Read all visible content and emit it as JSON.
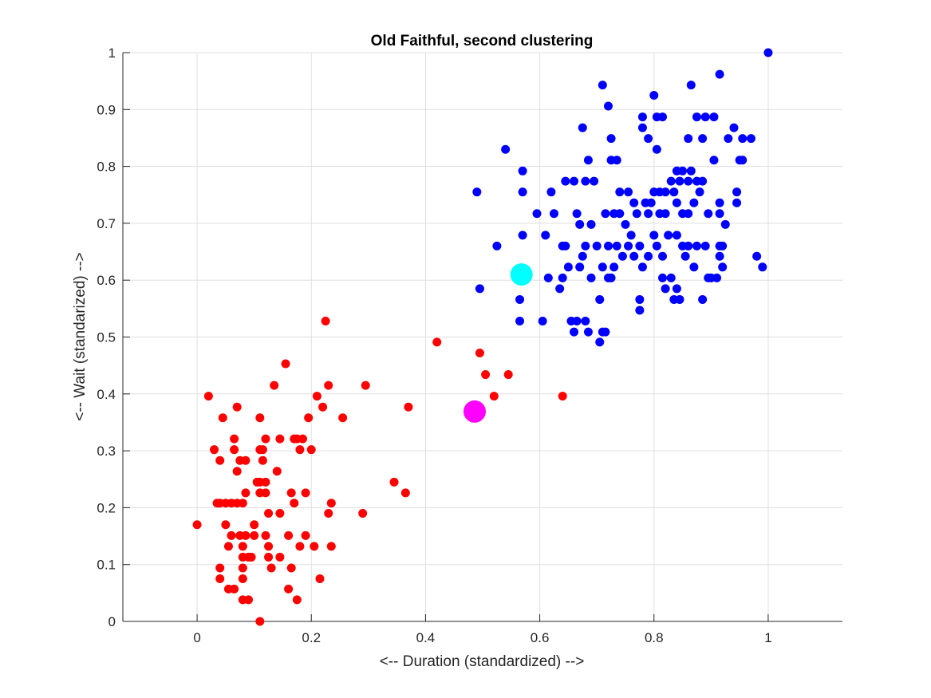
{
  "chart_data": {
    "type": "scatter",
    "title": "Old Faithful, second clustering",
    "xlabel": "<-- Duration (standardized) -->",
    "ylabel": "<-- Wait (standarized) -->",
    "xlim": [
      -0.13,
      1.13
    ],
    "ylim": [
      0,
      1
    ],
    "xticks": [
      0,
      0.2,
      0.4,
      0.6,
      0.8,
      1
    ],
    "yticks": [
      0,
      0.1,
      0.2,
      0.3,
      0.4,
      0.5,
      0.6,
      0.7,
      0.8,
      0.9,
      1
    ],
    "xtick_labels": [
      "0",
      "0.2",
      "0.4",
      "0.6",
      "0.8",
      "1"
    ],
    "ytick_labels": [
      "0",
      "0.1",
      "0.2",
      "0.3",
      "0.4",
      "0.5",
      "0.6",
      "0.7",
      "0.8",
      "0.9",
      "1"
    ],
    "grid": true,
    "series": [
      {
        "color": "#ff0000",
        "points": [
          [
            0.0,
            0.17
          ],
          [
            0.02,
            0.396
          ],
          [
            0.03,
            0.302
          ],
          [
            0.035,
            0.208
          ],
          [
            0.04,
            0.208
          ],
          [
            0.04,
            0.283
          ],
          [
            0.045,
            0.358
          ],
          [
            0.04,
            0.094
          ],
          [
            0.04,
            0.075
          ],
          [
            0.05,
            0.208
          ],
          [
            0.05,
            0.17
          ],
          [
            0.055,
            0.132
          ],
          [
            0.055,
            0.057
          ],
          [
            0.06,
            0.208
          ],
          [
            0.06,
            0.151
          ],
          [
            0.065,
            0.321
          ],
          [
            0.065,
            0.302
          ],
          [
            0.065,
            0.057
          ],
          [
            0.07,
            0.377
          ],
          [
            0.07,
            0.264
          ],
          [
            0.07,
            0.208
          ],
          [
            0.075,
            0.283
          ],
          [
            0.075,
            0.151
          ],
          [
            0.08,
            0.208
          ],
          [
            0.08,
            0.132
          ],
          [
            0.08,
            0.113
          ],
          [
            0.08,
            0.094
          ],
          [
            0.08,
            0.075
          ],
          [
            0.08,
            0.038
          ],
          [
            0.085,
            0.283
          ],
          [
            0.085,
            0.226
          ],
          [
            0.085,
            0.151
          ],
          [
            0.09,
            0.113
          ],
          [
            0.09,
            0.038
          ],
          [
            0.095,
            0.113
          ],
          [
            0.1,
            0.17
          ],
          [
            0.1,
            0.151
          ],
          [
            0.105,
            0.245
          ],
          [
            0.11,
            0.358
          ],
          [
            0.11,
            0.302
          ],
          [
            0.11,
            0.245
          ],
          [
            0.11,
            0.226
          ],
          [
            0.115,
            0.302
          ],
          [
            0.115,
            0.283
          ],
          [
            0.12,
            0.321
          ],
          [
            0.12,
            0.245
          ],
          [
            0.12,
            0.226
          ],
          [
            0.12,
            0.151
          ],
          [
            0.125,
            0.19
          ],
          [
            0.125,
            0.132
          ],
          [
            0.125,
            0.113
          ],
          [
            0.13,
            0.094
          ],
          [
            0.135,
            0.415
          ],
          [
            0.14,
            0.264
          ],
          [
            0.145,
            0.321
          ],
          [
            0.145,
            0.19
          ],
          [
            0.145,
            0.113
          ],
          [
            0.155,
            0.453
          ],
          [
            0.16,
            0.151
          ],
          [
            0.16,
            0.057
          ],
          [
            0.165,
            0.094
          ],
          [
            0.165,
            0.226
          ],
          [
            0.17,
            0.321
          ],
          [
            0.17,
            0.208
          ],
          [
            0.175,
            0.321
          ],
          [
            0.175,
            0.038
          ],
          [
            0.18,
            0.302
          ],
          [
            0.18,
            0.132
          ],
          [
            0.185,
            0.321
          ],
          [
            0.19,
            0.151
          ],
          [
            0.19,
            0.226
          ],
          [
            0.195,
            0.358
          ],
          [
            0.2,
            0.302
          ],
          [
            0.205,
            0.132
          ],
          [
            0.21,
            0.396
          ],
          [
            0.215,
            0.075
          ],
          [
            0.22,
            0.377
          ],
          [
            0.225,
            0.528
          ],
          [
            0.23,
            0.415
          ],
          [
            0.23,
            0.19
          ],
          [
            0.235,
            0.208
          ],
          [
            0.235,
            0.132
          ],
          [
            0.255,
            0.358
          ],
          [
            0.29,
            0.19
          ],
          [
            0.295,
            0.415
          ],
          [
            0.11,
            0.0
          ],
          [
            0.345,
            0.245
          ],
          [
            0.365,
            0.226
          ],
          [
            0.37,
            0.377
          ],
          [
            0.42,
            0.491
          ],
          [
            0.495,
            0.472
          ],
          [
            0.505,
            0.434
          ],
          [
            0.52,
            0.396
          ],
          [
            0.545,
            0.434
          ],
          [
            0.64,
            0.396
          ]
        ]
      },
      {
        "color": "#0000ff",
        "points": [
          [
            0.49,
            0.755
          ],
          [
            0.495,
            0.585
          ],
          [
            0.525,
            0.66
          ],
          [
            0.54,
            0.83
          ],
          [
            0.565,
            0.566
          ],
          [
            0.565,
            0.528
          ],
          [
            0.57,
            0.755
          ],
          [
            0.57,
            0.792
          ],
          [
            0.57,
            0.679
          ],
          [
            0.595,
            0.717
          ],
          [
            0.605,
            0.528
          ],
          [
            0.61,
            0.679
          ],
          [
            0.615,
            0.604
          ],
          [
            0.62,
            0.755
          ],
          [
            0.625,
            0.717
          ],
          [
            0.635,
            0.585
          ],
          [
            0.64,
            0.66
          ],
          [
            0.64,
            0.604
          ],
          [
            0.645,
            0.774
          ],
          [
            0.645,
            0.66
          ],
          [
            0.65,
            0.623
          ],
          [
            0.655,
            0.528
          ],
          [
            0.66,
            0.509
          ],
          [
            0.66,
            0.774
          ],
          [
            0.665,
            0.528
          ],
          [
            0.665,
            0.717
          ],
          [
            0.67,
            0.698
          ],
          [
            0.67,
            0.623
          ],
          [
            0.675,
            0.868
          ],
          [
            0.675,
            0.642
          ],
          [
            0.68,
            0.774
          ],
          [
            0.68,
            0.66
          ],
          [
            0.68,
            0.528
          ],
          [
            0.685,
            0.811
          ],
          [
            0.685,
            0.509
          ],
          [
            0.69,
            0.698
          ],
          [
            0.69,
            0.604
          ],
          [
            0.695,
            0.774
          ],
          [
            0.7,
            0.66
          ],
          [
            0.705,
            0.491
          ],
          [
            0.705,
            0.566
          ],
          [
            0.71,
            0.943
          ],
          [
            0.71,
            0.623
          ],
          [
            0.71,
            0.509
          ],
          [
            0.715,
            0.717
          ],
          [
            0.715,
            0.509
          ],
          [
            0.72,
            0.906
          ],
          [
            0.72,
            0.66
          ],
          [
            0.72,
            0.604
          ],
          [
            0.725,
            0.849
          ],
          [
            0.725,
            0.811
          ],
          [
            0.725,
            0.604
          ],
          [
            0.73,
            0.717
          ],
          [
            0.73,
            0.623
          ],
          [
            0.735,
            0.811
          ],
          [
            0.735,
            0.66
          ],
          [
            0.74,
            0.755
          ],
          [
            0.74,
            0.717
          ],
          [
            0.745,
            0.642
          ],
          [
            0.75,
            0.698
          ],
          [
            0.755,
            0.755
          ],
          [
            0.755,
            0.66
          ],
          [
            0.76,
            0.679
          ],
          [
            0.765,
            0.642
          ],
          [
            0.765,
            0.736
          ],
          [
            0.77,
            0.717
          ],
          [
            0.775,
            0.66
          ],
          [
            0.775,
            0.566
          ],
          [
            0.775,
            0.547
          ],
          [
            0.78,
            0.868
          ],
          [
            0.78,
            0.887
          ],
          [
            0.78,
            0.623
          ],
          [
            0.785,
            0.736
          ],
          [
            0.79,
            0.849
          ],
          [
            0.79,
            0.717
          ],
          [
            0.79,
            0.642
          ],
          [
            0.795,
            0.736
          ],
          [
            0.8,
            0.925
          ],
          [
            0.8,
            0.755
          ],
          [
            0.8,
            0.679
          ],
          [
            0.805,
            0.83
          ],
          [
            0.805,
            0.66
          ],
          [
            0.805,
            0.887
          ],
          [
            0.81,
            0.755
          ],
          [
            0.81,
            0.717
          ],
          [
            0.815,
            0.887
          ],
          [
            0.815,
            0.642
          ],
          [
            0.815,
            0.604
          ],
          [
            0.82,
            0.755
          ],
          [
            0.82,
            0.717
          ],
          [
            0.82,
            0.585
          ],
          [
            0.825,
            0.679
          ],
          [
            0.83,
            0.774
          ],
          [
            0.83,
            0.604
          ],
          [
            0.835,
            0.755
          ],
          [
            0.835,
            0.566
          ],
          [
            0.84,
            0.792
          ],
          [
            0.84,
            0.736
          ],
          [
            0.84,
            0.679
          ],
          [
            0.84,
            0.585
          ],
          [
            0.845,
            0.774
          ],
          [
            0.845,
            0.566
          ],
          [
            0.85,
            0.792
          ],
          [
            0.85,
            0.717
          ],
          [
            0.85,
            0.66
          ],
          [
            0.855,
            0.642
          ],
          [
            0.86,
            0.849
          ],
          [
            0.86,
            0.774
          ],
          [
            0.86,
            0.717
          ],
          [
            0.86,
            0.66
          ],
          [
            0.865,
            0.943
          ],
          [
            0.865,
            0.792
          ],
          [
            0.87,
            0.736
          ],
          [
            0.87,
            0.623
          ],
          [
            0.875,
            0.887
          ],
          [
            0.875,
            0.774
          ],
          [
            0.875,
            0.66
          ],
          [
            0.88,
            0.755
          ],
          [
            0.885,
            0.849
          ],
          [
            0.885,
            0.774
          ],
          [
            0.885,
            0.566
          ],
          [
            0.89,
            0.887
          ],
          [
            0.89,
            0.66
          ],
          [
            0.895,
            0.717
          ],
          [
            0.895,
            0.604
          ],
          [
            0.9,
            0.604
          ],
          [
            0.905,
            0.811
          ],
          [
            0.905,
            0.887
          ],
          [
            0.91,
            0.604
          ],
          [
            0.915,
            0.962
          ],
          [
            0.915,
            0.736
          ],
          [
            0.915,
            0.717
          ],
          [
            0.915,
            0.66
          ],
          [
            0.915,
            0.642
          ],
          [
            0.92,
            0.66
          ],
          [
            0.92,
            0.623
          ],
          [
            0.925,
            0.698
          ],
          [
            0.93,
            0.849
          ],
          [
            0.94,
            0.868
          ],
          [
            0.945,
            0.755
          ],
          [
            0.945,
            0.736
          ],
          [
            0.95,
            0.811
          ],
          [
            0.955,
            0.811
          ],
          [
            0.955,
            0.849
          ],
          [
            0.97,
            0.849
          ],
          [
            0.98,
            0.642
          ],
          [
            0.99,
            0.623
          ],
          [
            1.0,
            1.0
          ]
        ]
      }
    ],
    "centroids": [
      {
        "color": "#00ffff",
        "x": 0.568,
        "y": 0.61
      },
      {
        "color": "#ff00ff",
        "x": 0.486,
        "y": 0.369
      }
    ]
  }
}
